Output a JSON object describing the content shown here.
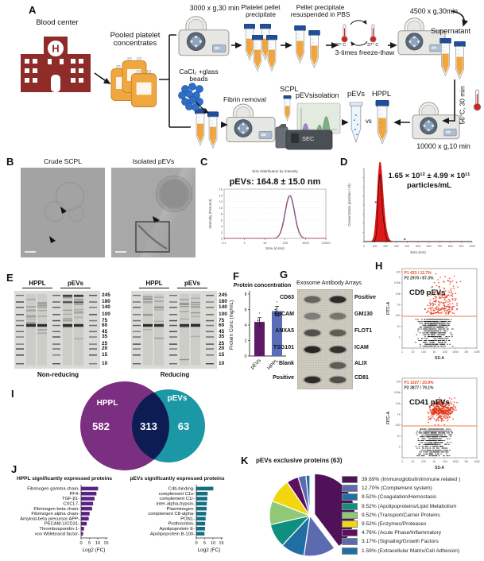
{
  "labels": {
    "A": "A",
    "B": "B",
    "C": "C",
    "D": "D",
    "E": "E",
    "F": "F",
    "G": "G",
    "H": "H",
    "I": "I",
    "J": "J",
    "K": "K"
  },
  "panelA": {
    "blood_center": "Blood center",
    "pooled_platelet": "Pooled platelet concentrates",
    "step_3000": "3000 x g,30 min",
    "platelet_pellet": "Platelet pellet precipitate",
    "pellet_resuspended": "Pellet precipitate resuspended in PBS",
    "temp_cold": "-80° C",
    "temp_warm": "37° C",
    "freeze_thaw": "3-times freeze-thaw",
    "step_4500": "4500 x g,30min",
    "supernatant": "Supernatant",
    "heat_56": "56°C, 30 min",
    "step_10000": "10000 x g,10 min",
    "cacl2_beads": "CaCl₂ +glass beads",
    "fibrin_removal": "Fibrin removal",
    "scpl": "SCPL",
    "pevs_isolation": "pEVsisolation",
    "sec": "SEC",
    "pevs": "pEVs",
    "hppl": "HPPL",
    "vs": "vs"
  },
  "panelB": {
    "caption_left": "Crude SCPL",
    "caption_right": "Isolated pEVs"
  },
  "panelE": {
    "header_hppl": "HPPL",
    "header_pevs": "pEVs",
    "markers": [
      245,
      180,
      140,
      100,
      75,
      60,
      45,
      35,
      25,
      20,
      15,
      10
    ],
    "caption_left": "Non-reducing",
    "caption_right": "Reducing"
  },
  "panelG": {
    "title": "Exosome Antibody Arrays",
    "rows": [
      {
        "left": "CD63",
        "right": "Positive",
        "li": 0.55,
        "ri": 0.95
      },
      {
        "left": "EpCAM",
        "right": "GM130",
        "li": 0.4,
        "ri": 0.45
      },
      {
        "left": "ANXA5",
        "right": "FLOT1",
        "li": 0.7,
        "ri": 0.6
      },
      {
        "left": "TSG101",
        "right": "ICAM",
        "li": 1.0,
        "ri": 0.9
      },
      {
        "left": "Blank",
        "right": "ALIX",
        "li": 0.06,
        "ri": 0.6
      },
      {
        "left": "Positive",
        "right": "CD81",
        "li": 0.95,
        "ri": 0.7
      }
    ]
  },
  "chart_data": [
    {
      "id": "dls",
      "type": "line",
      "title": "Size Distribution by Intensity",
      "annotation": "pEVs: 164.8 ± 15.0 nm",
      "xlabel": "Size (d.nm)",
      "ylabel": "Intensity (Percent)",
      "x_scale": "log",
      "x_ticks": [
        0.1,
        1,
        10,
        100,
        1000,
        10000
      ],
      "ylim": [
        0,
        16
      ],
      "y_tick_step": 2,
      "peak": {
        "center_nm": 164.8,
        "sd_nm": 15.0,
        "height_percent": 14
      },
      "series_colors": [
        "#c04040",
        "#5560c8"
      ]
    },
    {
      "id": "nta",
      "type": "line",
      "annotation_line1": "1.65 × 10¹² ± 4.99 × 10¹¹",
      "annotation_line2": "particles/mL",
      "xlabel": "Size (nm)",
      "ylabel": "Concentration (particles / ml)",
      "xlim": [
        0,
        1000
      ],
      "x_tick_step": 100,
      "peak": {
        "center_nm": 145,
        "height_rel": 1.0,
        "shoulder_nm": 175,
        "shoulder_rel": 0.3
      },
      "fill_color": "#dd0000"
    },
    {
      "id": "protein",
      "type": "bar",
      "title": "Protein concentration",
      "ylabel": "Protein Conc (mg/mL)",
      "categories": [
        "pEVs",
        "HPPL"
      ],
      "values": [
        4.4,
        5.8
      ],
      "errors": [
        0.55,
        0.6
      ],
      "colors": [
        "#5e1a66",
        "#5b6cb8"
      ],
      "ylim": [
        0,
        8
      ],
      "y_tick_step": 2
    },
    {
      "id": "facs_cd9",
      "type": "scatter",
      "label": "CD9 pEVs",
      "p1": "P1  433 / 12.7%",
      "p2": "P2  2970 / 87.3%",
      "p1_pct": 12.7,
      "xlabel": "SS-A",
      "ylabel": "FITC-A",
      "x_ticks": [
        "1",
        "10",
        "100",
        "1k",
        "10k",
        "100k",
        "1M",
        "10M"
      ],
      "y_ticks": [
        "1",
        "10",
        "100",
        "1k",
        "10k",
        "100k",
        "1M"
      ],
      "gate_color": "#f08048",
      "pos_color": "#e23318"
    },
    {
      "id": "facs_cd41",
      "type": "scatter",
      "label": "CD41 pEVs",
      "p1": "P1  1027 / 20.9%",
      "p2": "P2  3877 / 79.1%",
      "p1_pct": 20.9,
      "xlabel": "SS-A",
      "ylabel": "FITC-A",
      "x_ticks": [
        "1",
        "10",
        "100",
        "1k",
        "10k",
        "100k",
        "1M",
        "10M"
      ],
      "y_ticks": [
        "1",
        "10",
        "100",
        "1k",
        "10k",
        "100k",
        "1M"
      ],
      "gate_color": "#f08048",
      "pos_color": "#e23318"
    },
    {
      "id": "venn",
      "type": "venn",
      "set_a": {
        "label": "HPPL",
        "only": "582",
        "color": "#7b2f80"
      },
      "set_b": {
        "label": "pEVs",
        "only": "63",
        "color": "#1b97a6"
      },
      "intersection": "313"
    },
    {
      "id": "hppl_proteins",
      "type": "bar_h",
      "title": "HPPL significantly expressed proteins",
      "xlabel": "Log2 (FC)",
      "xlim": [
        0,
        15
      ],
      "x_ticks": [
        0,
        5,
        10,
        15
      ],
      "color": "#5a2482",
      "categories": [
        "Fibrinogen gamma chain",
        "PF4",
        "TGF-β1",
        "CXCL7",
        "Fibrinogen beta chain",
        "Fibrinogen alpha chain",
        "Amyloid-beta precursor APP",
        "PECAM-1/CD31",
        "Thrombospondin-1",
        "von Willebrand factor"
      ],
      "values": [
        10.2,
        9.2,
        8.1,
        7.2,
        6.6,
        5.1,
        4.6,
        3.4,
        1.8,
        1.2
      ]
    },
    {
      "id": "pevs_proteins",
      "type": "bar_h",
      "title": "pEVs significantly expressed proteins",
      "xlabel": "Log2 (FC)",
      "xlim": [
        0,
        15
      ],
      "x_ticks": [
        0,
        5,
        10,
        15
      ],
      "color": "#136f82",
      "categories": [
        "C4b-binding",
        "complement C1s",
        "complement C1r",
        "inter-alpha-trypsin",
        "Plasminogen",
        "complement C8-alpha",
        "PON1",
        "Prothrombin",
        "Apolipoprotein E",
        "Apolipoprotein B-100"
      ],
      "values": [
        10.2,
        6.8,
        6.6,
        6.3,
        6.2,
        5.9,
        5.6,
        5.3,
        5.2,
        4.9
      ]
    },
    {
      "id": "pie",
      "type": "pie",
      "title": "pEVs exclusive proteins (63)",
      "slices": [
        {
          "pct": "39.69%",
          "value": 39.69,
          "label": "(Immunoglobulin/immune related )",
          "color": "#4f1259"
        },
        {
          "pct": "12.70%",
          "value": 12.7,
          "label": "(Complement system)",
          "color": "#5c6bb0"
        },
        {
          "pct": "9.52%",
          "value": 9.52,
          "label": "(Coagulation/Hemostasis",
          "color": "#1f6fa5"
        },
        {
          "pct": "9.52%",
          "value": 9.52,
          "label": "(Apolipoproteins/Lipid Metabolism",
          "color": "#0e8f80"
        },
        {
          "pct": "9.52%",
          "value": 9.52,
          "label": "(Transport/Carrier Proteins",
          "color": "#8fc978"
        },
        {
          "pct": "9.52%",
          "value": 9.52,
          "label": "(Enzymes/Proteases",
          "color": "#f2d70e"
        },
        {
          "pct": "4.76%",
          "value": 4.76,
          "label": "(Acute Phase/Inflammatory",
          "color": "#5c0f5f"
        },
        {
          "pct": "3.17%",
          "value": 3.17,
          "label": "(Signaling/Growth Factors",
          "color": "#5c6bb0"
        },
        {
          "pct": "1.59%",
          "value": 1.59,
          "label": "(Extracellular  Matrix/Cell Adhesion)",
          "color": "#1f6fa5"
        }
      ]
    }
  ]
}
